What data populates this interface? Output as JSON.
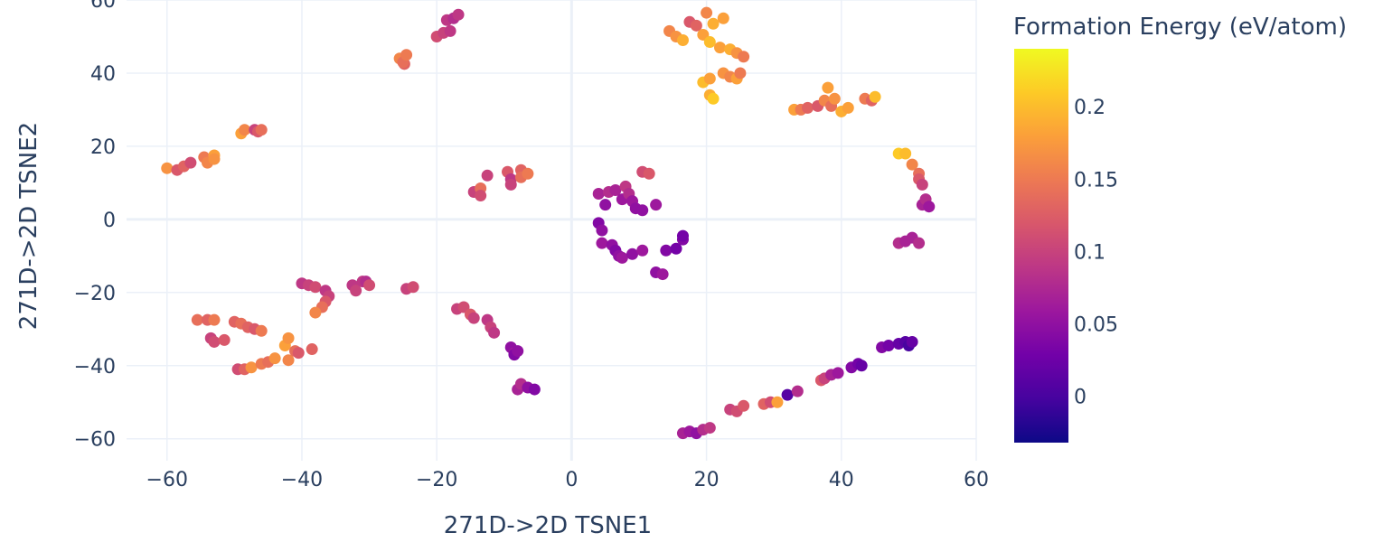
{
  "chart_data": {
    "type": "scatter",
    "title": "",
    "xlabel": "271D->2D TSNE1",
    "ylabel": "271D->2D TSNE2",
    "xlim": [
      -66,
      60
    ],
    "ylim": [
      -66,
      60
    ],
    "xticks": [
      -60,
      -40,
      -20,
      0,
      20,
      40,
      60
    ],
    "yticks": [
      -60,
      -40,
      -20,
      0,
      20,
      40,
      60
    ],
    "tick_labels": {
      "x": [
        "−60",
        "−40",
        "−20",
        "0",
        "20",
        "40",
        "60"
      ],
      "y": [
        "−60",
        "−40",
        "−20",
        "0",
        "20",
        "40",
        "60"
      ]
    },
    "grid": true,
    "colorbar": {
      "title": "Formation Energy (eV/atom)",
      "range": [
        -0.032,
        0.24
      ],
      "ticks": [
        0,
        0.05,
        0.1,
        0.15,
        0.2
      ],
      "tick_labels": [
        "0",
        "0.05",
        "0.1",
        "0.15",
        "0.2"
      ],
      "colorscale": [
        "#0d0887",
        "#46039f",
        "#7201a8",
        "#9c179e",
        "#bd3786",
        "#d8576b",
        "#ed7953",
        "#fb9f3a",
        "#fdca26",
        "#f0f921"
      ]
    },
    "points": [
      {
        "x": -25.5,
        "y": 44.0,
        "c": 0.16
      },
      {
        "x": -24.8,
        "y": 42.5,
        "c": 0.13
      },
      {
        "x": -25.0,
        "y": 43.0,
        "c": 0.14
      },
      {
        "x": -24.5,
        "y": 45.0,
        "c": 0.15
      },
      {
        "x": -20.0,
        "y": 50.0,
        "c": 0.11
      },
      {
        "x": -19.0,
        "y": 51.0,
        "c": 0.1
      },
      {
        "x": -18.0,
        "y": 51.5,
        "c": 0.09
      },
      {
        "x": -18.5,
        "y": 54.5,
        "c": 0.09
      },
      {
        "x": -17.5,
        "y": 55.0,
        "c": 0.08
      },
      {
        "x": -16.8,
        "y": 56.0,
        "c": 0.09
      },
      {
        "x": -60.0,
        "y": 14.0,
        "c": 0.17
      },
      {
        "x": -58.5,
        "y": 13.5,
        "c": 0.12
      },
      {
        "x": -57.5,
        "y": 14.5,
        "c": 0.13
      },
      {
        "x": -56.5,
        "y": 15.5,
        "c": 0.11
      },
      {
        "x": -54.5,
        "y": 17.0,
        "c": 0.15
      },
      {
        "x": -54.0,
        "y": 15.5,
        "c": 0.16
      },
      {
        "x": -53.0,
        "y": 17.5,
        "c": 0.18
      },
      {
        "x": -53.0,
        "y": 16.5,
        "c": 0.17
      },
      {
        "x": -49.0,
        "y": 23.5,
        "c": 0.18
      },
      {
        "x": -48.5,
        "y": 24.5,
        "c": 0.16
      },
      {
        "x": -47.0,
        "y": 24.5,
        "c": 0.1
      },
      {
        "x": -46.5,
        "y": 24.0,
        "c": 0.12
      },
      {
        "x": -46.0,
        "y": 24.5,
        "c": 0.14
      },
      {
        "x": -14.5,
        "y": 7.5,
        "c": 0.1
      },
      {
        "x": -13.5,
        "y": 8.5,
        "c": 0.14
      },
      {
        "x": -13.5,
        "y": 6.5,
        "c": 0.11
      },
      {
        "x": -12.5,
        "y": 12.0,
        "c": 0.1
      },
      {
        "x": -9.5,
        "y": 13.0,
        "c": 0.12
      },
      {
        "x": -9.0,
        "y": 11.0,
        "c": 0.09
      },
      {
        "x": -9.0,
        "y": 9.5,
        "c": 0.1
      },
      {
        "x": -7.5,
        "y": 13.5,
        "c": 0.13
      },
      {
        "x": -7.5,
        "y": 11.5,
        "c": 0.14
      },
      {
        "x": -6.5,
        "y": 12.5,
        "c": 0.15
      },
      {
        "x": 4.0,
        "y": 7.0,
        "c": 0.07
      },
      {
        "x": 5.5,
        "y": 7.5,
        "c": 0.08
      },
      {
        "x": 6.5,
        "y": 8.0,
        "c": 0.07
      },
      {
        "x": 5.0,
        "y": 4.0,
        "c": 0.05
      },
      {
        "x": 7.5,
        "y": 5.5,
        "c": 0.06
      },
      {
        "x": 8.0,
        "y": 9.0,
        "c": 0.09
      },
      {
        "x": 8.5,
        "y": 7.0,
        "c": 0.08
      },
      {
        "x": 9.0,
        "y": 5.0,
        "c": 0.06
      },
      {
        "x": 9.5,
        "y": 3.0,
        "c": 0.05
      },
      {
        "x": 10.5,
        "y": 2.5,
        "c": 0.05
      },
      {
        "x": 10.5,
        "y": 13.0,
        "c": 0.11
      },
      {
        "x": 11.5,
        "y": 12.5,
        "c": 0.12
      },
      {
        "x": 12.5,
        "y": 4.0,
        "c": 0.06
      },
      {
        "x": 4.0,
        "y": -1.0,
        "c": 0.04
      },
      {
        "x": 4.5,
        "y": -3.0,
        "c": 0.05
      },
      {
        "x": 4.5,
        "y": -6.5,
        "c": 0.06
      },
      {
        "x": 6.0,
        "y": -7.0,
        "c": 0.05
      },
      {
        "x": 6.5,
        "y": -8.5,
        "c": 0.04
      },
      {
        "x": 7.0,
        "y": -10.0,
        "c": 0.05
      },
      {
        "x": 7.5,
        "y": -10.5,
        "c": 0.06
      },
      {
        "x": 9.0,
        "y": -9.5,
        "c": 0.05
      },
      {
        "x": 10.5,
        "y": -8.5,
        "c": 0.06
      },
      {
        "x": 12.5,
        "y": -14.5,
        "c": 0.05
      },
      {
        "x": 13.5,
        "y": -15.0,
        "c": 0.06
      },
      {
        "x": 14.0,
        "y": -8.5,
        "c": 0.04
      },
      {
        "x": 15.5,
        "y": -8.0,
        "c": 0.03
      },
      {
        "x": 16.5,
        "y": -5.5,
        "c": 0.04
      },
      {
        "x": 16.5,
        "y": -4.5,
        "c": 0.03
      },
      {
        "x": 14.5,
        "y": 51.5,
        "c": 0.16
      },
      {
        "x": 15.5,
        "y": 50.0,
        "c": 0.17
      },
      {
        "x": 16.5,
        "y": 49.0,
        "c": 0.19
      },
      {
        "x": 17.5,
        "y": 54.0,
        "c": 0.12
      },
      {
        "x": 18.5,
        "y": 53.0,
        "c": 0.13
      },
      {
        "x": 19.5,
        "y": 50.5,
        "c": 0.18
      },
      {
        "x": 20.0,
        "y": 56.5,
        "c": 0.16
      },
      {
        "x": 20.5,
        "y": 48.5,
        "c": 0.2
      },
      {
        "x": 21.0,
        "y": 53.5,
        "c": 0.19
      },
      {
        "x": 22.0,
        "y": 47.0,
        "c": 0.18
      },
      {
        "x": 22.5,
        "y": 55.0,
        "c": 0.18
      },
      {
        "x": 23.5,
        "y": 46.5,
        "c": 0.19
      },
      {
        "x": 24.5,
        "y": 45.5,
        "c": 0.17
      },
      {
        "x": 25.5,
        "y": 44.5,
        "c": 0.15
      },
      {
        "x": 19.5,
        "y": 37.5,
        "c": 0.2
      },
      {
        "x": 20.5,
        "y": 38.5,
        "c": 0.18
      },
      {
        "x": 20.5,
        "y": 34.0,
        "c": 0.19
      },
      {
        "x": 21.0,
        "y": 33.0,
        "c": 0.21
      },
      {
        "x": 22.5,
        "y": 40.0,
        "c": 0.17
      },
      {
        "x": 23.5,
        "y": 39.0,
        "c": 0.16
      },
      {
        "x": 24.5,
        "y": 38.5,
        "c": 0.18
      },
      {
        "x": 25.0,
        "y": 40.0,
        "c": 0.15
      },
      {
        "x": 33.0,
        "y": 30.0,
        "c": 0.18
      },
      {
        "x": 34.0,
        "y": 30.0,
        "c": 0.15
      },
      {
        "x": 35.0,
        "y": 30.5,
        "c": 0.13
      },
      {
        "x": 36.5,
        "y": 31.0,
        "c": 0.12
      },
      {
        "x": 37.5,
        "y": 32.5,
        "c": 0.16
      },
      {
        "x": 38.0,
        "y": 36.0,
        "c": 0.18
      },
      {
        "x": 38.5,
        "y": 31.0,
        "c": 0.14
      },
      {
        "x": 39.0,
        "y": 33.0,
        "c": 0.17
      },
      {
        "x": 40.0,
        "y": 29.5,
        "c": 0.19
      },
      {
        "x": 41.0,
        "y": 30.5,
        "c": 0.18
      },
      {
        "x": 43.5,
        "y": 33.0,
        "c": 0.15
      },
      {
        "x": 44.5,
        "y": 32.5,
        "c": 0.13
      },
      {
        "x": 45.0,
        "y": 33.5,
        "c": 0.2
      },
      {
        "x": 48.5,
        "y": 18.0,
        "c": 0.21
      },
      {
        "x": 49.5,
        "y": 18.0,
        "c": 0.2
      },
      {
        "x": 50.5,
        "y": 15.0,
        "c": 0.16
      },
      {
        "x": 51.5,
        "y": 12.5,
        "c": 0.14
      },
      {
        "x": 51.5,
        "y": 11.0,
        "c": 0.12
      },
      {
        "x": 52.0,
        "y": 9.5,
        "c": 0.1
      },
      {
        "x": 52.0,
        "y": 4.0,
        "c": 0.07
      },
      {
        "x": 52.5,
        "y": 5.5,
        "c": 0.08
      },
      {
        "x": 53.0,
        "y": 3.5,
        "c": 0.06
      },
      {
        "x": 48.5,
        "y": -6.5,
        "c": 0.08
      },
      {
        "x": 49.5,
        "y": -6.0,
        "c": 0.07
      },
      {
        "x": 50.5,
        "y": -5.0,
        "c": 0.07
      },
      {
        "x": 51.5,
        "y": -6.5,
        "c": 0.08
      },
      {
        "x": -40.0,
        "y": -17.5,
        "c": 0.09
      },
      {
        "x": -39.0,
        "y": -18.0,
        "c": 0.1
      },
      {
        "x": -38.0,
        "y": -18.5,
        "c": 0.11
      },
      {
        "x": -36.5,
        "y": -19.5,
        "c": 0.09
      },
      {
        "x": -36.0,
        "y": -21.0,
        "c": 0.1
      },
      {
        "x": -36.5,
        "y": -22.5,
        "c": 0.12
      },
      {
        "x": -37.0,
        "y": -24.0,
        "c": 0.14
      },
      {
        "x": -38.0,
        "y": -25.5,
        "c": 0.16
      },
      {
        "x": -32.5,
        "y": -18.0,
        "c": 0.09
      },
      {
        "x": -32.0,
        "y": -19.5,
        "c": 0.1
      },
      {
        "x": -31.0,
        "y": -17.0,
        "c": 0.09
      },
      {
        "x": -30.5,
        "y": -17.0,
        "c": 0.08
      },
      {
        "x": -30.0,
        "y": -18.0,
        "c": 0.11
      },
      {
        "x": -24.5,
        "y": -19.0,
        "c": 0.1
      },
      {
        "x": -23.5,
        "y": -18.5,
        "c": 0.11
      },
      {
        "x": -55.5,
        "y": -27.5,
        "c": 0.14
      },
      {
        "x": -54.0,
        "y": -27.5,
        "c": 0.13
      },
      {
        "x": -53.0,
        "y": -27.5,
        "c": 0.15
      },
      {
        "x": -53.5,
        "y": -32.5,
        "c": 0.1
      },
      {
        "x": -53.0,
        "y": -33.5,
        "c": 0.11
      },
      {
        "x": -51.5,
        "y": -33.0,
        "c": 0.12
      },
      {
        "x": -50.0,
        "y": -28.0,
        "c": 0.13
      },
      {
        "x": -49.0,
        "y": -28.5,
        "c": 0.14
      },
      {
        "x": -48.0,
        "y": -29.5,
        "c": 0.13
      },
      {
        "x": -47.0,
        "y": -30.0,
        "c": 0.12
      },
      {
        "x": -46.0,
        "y": -30.5,
        "c": 0.15
      },
      {
        "x": -49.5,
        "y": -41.0,
        "c": 0.11
      },
      {
        "x": -48.5,
        "y": -41.0,
        "c": 0.13
      },
      {
        "x": -47.5,
        "y": -40.5,
        "c": 0.17
      },
      {
        "x": -46.0,
        "y": -39.5,
        "c": 0.15
      },
      {
        "x": -45.0,
        "y": -39.0,
        "c": 0.14
      },
      {
        "x": -44.0,
        "y": -38.0,
        "c": 0.17
      },
      {
        "x": -42.5,
        "y": -34.5,
        "c": 0.18
      },
      {
        "x": -42.0,
        "y": -32.5,
        "c": 0.17
      },
      {
        "x": -42.0,
        "y": -38.5,
        "c": 0.16
      },
      {
        "x": -41.0,
        "y": -36.0,
        "c": 0.14
      },
      {
        "x": -40.5,
        "y": -36.5,
        "c": 0.12
      },
      {
        "x": -38.5,
        "y": -35.5,
        "c": 0.13
      },
      {
        "x": -17.0,
        "y": -24.5,
        "c": 0.1
      },
      {
        "x": -16.0,
        "y": -24.0,
        "c": 0.11
      },
      {
        "x": -15.0,
        "y": -26.0,
        "c": 0.12
      },
      {
        "x": -14.5,
        "y": -27.0,
        "c": 0.1
      },
      {
        "x": -12.5,
        "y": -27.5,
        "c": 0.09
      },
      {
        "x": -12.0,
        "y": -29.5,
        "c": 0.1
      },
      {
        "x": -11.5,
        "y": -31.0,
        "c": 0.09
      },
      {
        "x": -9.0,
        "y": -35.0,
        "c": 0.05
      },
      {
        "x": -8.5,
        "y": -36.5,
        "c": 0.06
      },
      {
        "x": -8.5,
        "y": -37.0,
        "c": 0.04
      },
      {
        "x": -8.0,
        "y": -36.0,
        "c": 0.05
      },
      {
        "x": -8.0,
        "y": -46.5,
        "c": 0.07
      },
      {
        "x": -7.5,
        "y": -45.0,
        "c": 0.08
      },
      {
        "x": -6.5,
        "y": -46.0,
        "c": 0.05
      },
      {
        "x": -5.5,
        "y": -46.5,
        "c": 0.04
      },
      {
        "x": 16.5,
        "y": -58.5,
        "c": 0.07
      },
      {
        "x": 17.5,
        "y": -58.0,
        "c": 0.06
      },
      {
        "x": 18.5,
        "y": -58.5,
        "c": 0.05
      },
      {
        "x": 19.5,
        "y": -57.5,
        "c": 0.08
      },
      {
        "x": 20.5,
        "y": -57.0,
        "c": 0.09
      },
      {
        "x": 23.5,
        "y": -52.0,
        "c": 0.1
      },
      {
        "x": 24.5,
        "y": -52.5,
        "c": 0.11
      },
      {
        "x": 25.5,
        "y": -51.0,
        "c": 0.12
      },
      {
        "x": 28.5,
        "y": -50.5,
        "c": 0.13
      },
      {
        "x": 29.5,
        "y": -50.0,
        "c": 0.11
      },
      {
        "x": 30.5,
        "y": -50.0,
        "c": 0.18
      },
      {
        "x": 32.0,
        "y": -48.0,
        "c": 0.01
      },
      {
        "x": 33.5,
        "y": -47.0,
        "c": 0.08
      },
      {
        "x": 37.0,
        "y": -44.0,
        "c": 0.12
      },
      {
        "x": 37.5,
        "y": -43.5,
        "c": 0.1
      },
      {
        "x": 38.5,
        "y": -42.5,
        "c": 0.07
      },
      {
        "x": 39.5,
        "y": -42.0,
        "c": 0.06
      },
      {
        "x": 41.5,
        "y": -40.5,
        "c": 0.04
      },
      {
        "x": 42.5,
        "y": -39.5,
        "c": 0.03
      },
      {
        "x": 43.0,
        "y": -40.0,
        "c": 0.02
      },
      {
        "x": 46.0,
        "y": -35.0,
        "c": 0.04
      },
      {
        "x": 47.0,
        "y": -34.5,
        "c": 0.03
      },
      {
        "x": 48.5,
        "y": -34.0,
        "c": 0.02
      },
      {
        "x": 49.5,
        "y": -33.5,
        "c": 0.01
      },
      {
        "x": 50.0,
        "y": -34.5,
        "c": 0.0
      },
      {
        "x": 50.5,
        "y": -33.5,
        "c": 0.02
      }
    ]
  }
}
